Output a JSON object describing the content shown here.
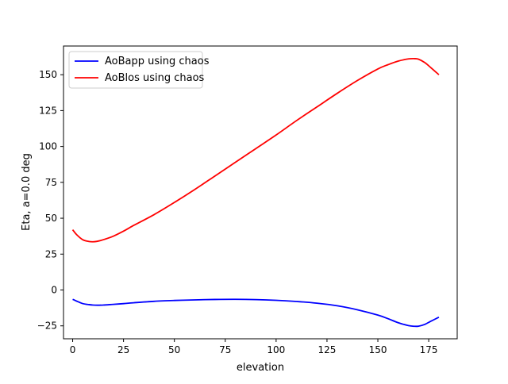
{
  "chart_data": {
    "type": "line",
    "title": "",
    "xlabel": "elevation",
    "ylabel": "Eta, a=0.0 deg",
    "xlim": [
      -4.5,
      189
    ],
    "ylim": [
      -34,
      170
    ],
    "xticks": [
      0,
      25,
      50,
      75,
      100,
      125,
      150,
      175
    ],
    "yticks": [
      -25,
      0,
      25,
      50,
      75,
      100,
      125,
      150
    ],
    "xtick_labels": [
      "0",
      "25",
      "50",
      "75",
      "100",
      "125",
      "150",
      "175"
    ],
    "ytick_labels": [
      "−25",
      "0",
      "25",
      "50",
      "75",
      "100",
      "125",
      "150"
    ],
    "grid": false,
    "legend_position": "top-left",
    "series": [
      {
        "name": "AoBapp using chaos",
        "color": "#0000ff",
        "x": [
          0,
          2,
          5,
          8,
          10,
          12,
          15,
          20,
          25,
          30,
          40,
          50,
          60,
          70,
          80,
          90,
          100,
          110,
          120,
          130,
          140,
          150,
          155,
          160,
          165,
          168,
          170,
          173,
          176,
          180
        ],
        "y": [
          -6.5,
          -7.8,
          -9.5,
          -10.2,
          -10.5,
          -10.6,
          -10.5,
          -10.0,
          -9.5,
          -8.9,
          -7.9,
          -7.3,
          -6.9,
          -6.6,
          -6.5,
          -6.7,
          -7.2,
          -8.0,
          -9.2,
          -11.0,
          -13.8,
          -17.5,
          -20.0,
          -22.8,
          -24.8,
          -25.3,
          -25.2,
          -24.0,
          -21.8,
          -19.0
        ]
      },
      {
        "name": "AoBlos using chaos",
        "color": "#ff0000",
        "x": [
          0,
          2,
          5,
          8,
          10,
          12,
          15,
          20,
          25,
          30,
          40,
          50,
          60,
          70,
          80,
          90,
          100,
          110,
          120,
          130,
          140,
          150,
          155,
          160,
          165,
          168,
          170,
          173,
          176,
          180
        ],
        "y": [
          42,
          38.5,
          35,
          33.8,
          33.6,
          33.9,
          35,
          37.5,
          41,
          45,
          52.5,
          61,
          70,
          79.5,
          89,
          98.5,
          108,
          118,
          127.5,
          137,
          146,
          154,
          157,
          159.5,
          161,
          161.2,
          160.8,
          158.5,
          155,
          150
        ]
      }
    ]
  }
}
